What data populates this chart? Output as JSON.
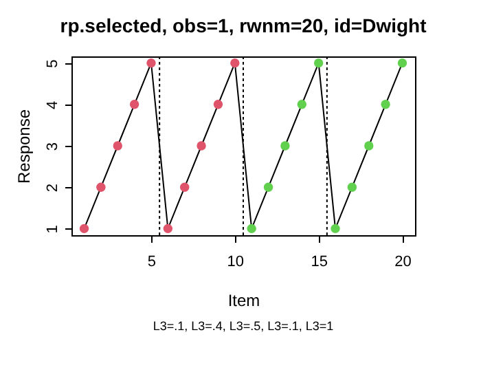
{
  "chart_data": {
    "type": "line",
    "title": "rp.selected, obs=1, rwnm=20, id=Dwight",
    "xlabel": "Item",
    "ylabel": "Response",
    "annotations": [
      "L3=.1, L3=.4, L3=.5, L3=.1, L3=1"
    ],
    "x": [
      1,
      2,
      3,
      4,
      5,
      6,
      7,
      8,
      9,
      10,
      11,
      12,
      13,
      14,
      15,
      16,
      17,
      18,
      19,
      20
    ],
    "series": [
      {
        "color": "#000000",
        "marker": "none",
        "values": [
          1,
          2,
          3,
          4,
          5,
          1,
          2,
          3,
          4,
          5,
          1,
          2,
          3,
          4,
          5,
          1,
          2,
          3,
          4,
          5
        ]
      },
      {
        "type": "scatter",
        "marker": "circle",
        "colors": [
          "#df536b",
          "#df536b",
          "#df536b",
          "#df536b",
          "#df536b",
          "#df536b",
          "#df536b",
          "#df536b",
          "#df536b",
          "#df536b",
          "#61d04f",
          "#61d04f",
          "#61d04f",
          "#61d04f",
          "#61d04f",
          "#61d04f",
          "#61d04f",
          "#61d04f",
          "#61d04f",
          "#61d04f"
        ],
        "values": [
          1,
          2,
          3,
          4,
          5,
          1,
          2,
          3,
          4,
          5,
          1,
          2,
          3,
          4,
          5,
          1,
          2,
          3,
          4,
          5
        ]
      }
    ],
    "ref_lines": [
      {
        "axis": "x",
        "value": 5.5,
        "line_style": "dotted",
        "color": "#000000"
      },
      {
        "axis": "x",
        "value": 10.5,
        "line_style": "dotted",
        "color": "#000000"
      },
      {
        "axis": "x",
        "value": 15.5,
        "line_style": "dotted",
        "color": "#000000"
      }
    ],
    "xlim": [
      0.24,
      20.76
    ],
    "xticks": [
      5,
      10,
      15,
      20
    ],
    "ylim": [
      0.84,
      5.16
    ],
    "yticks": [
      1,
      2,
      3,
      4,
      5
    ],
    "grid": false
  }
}
